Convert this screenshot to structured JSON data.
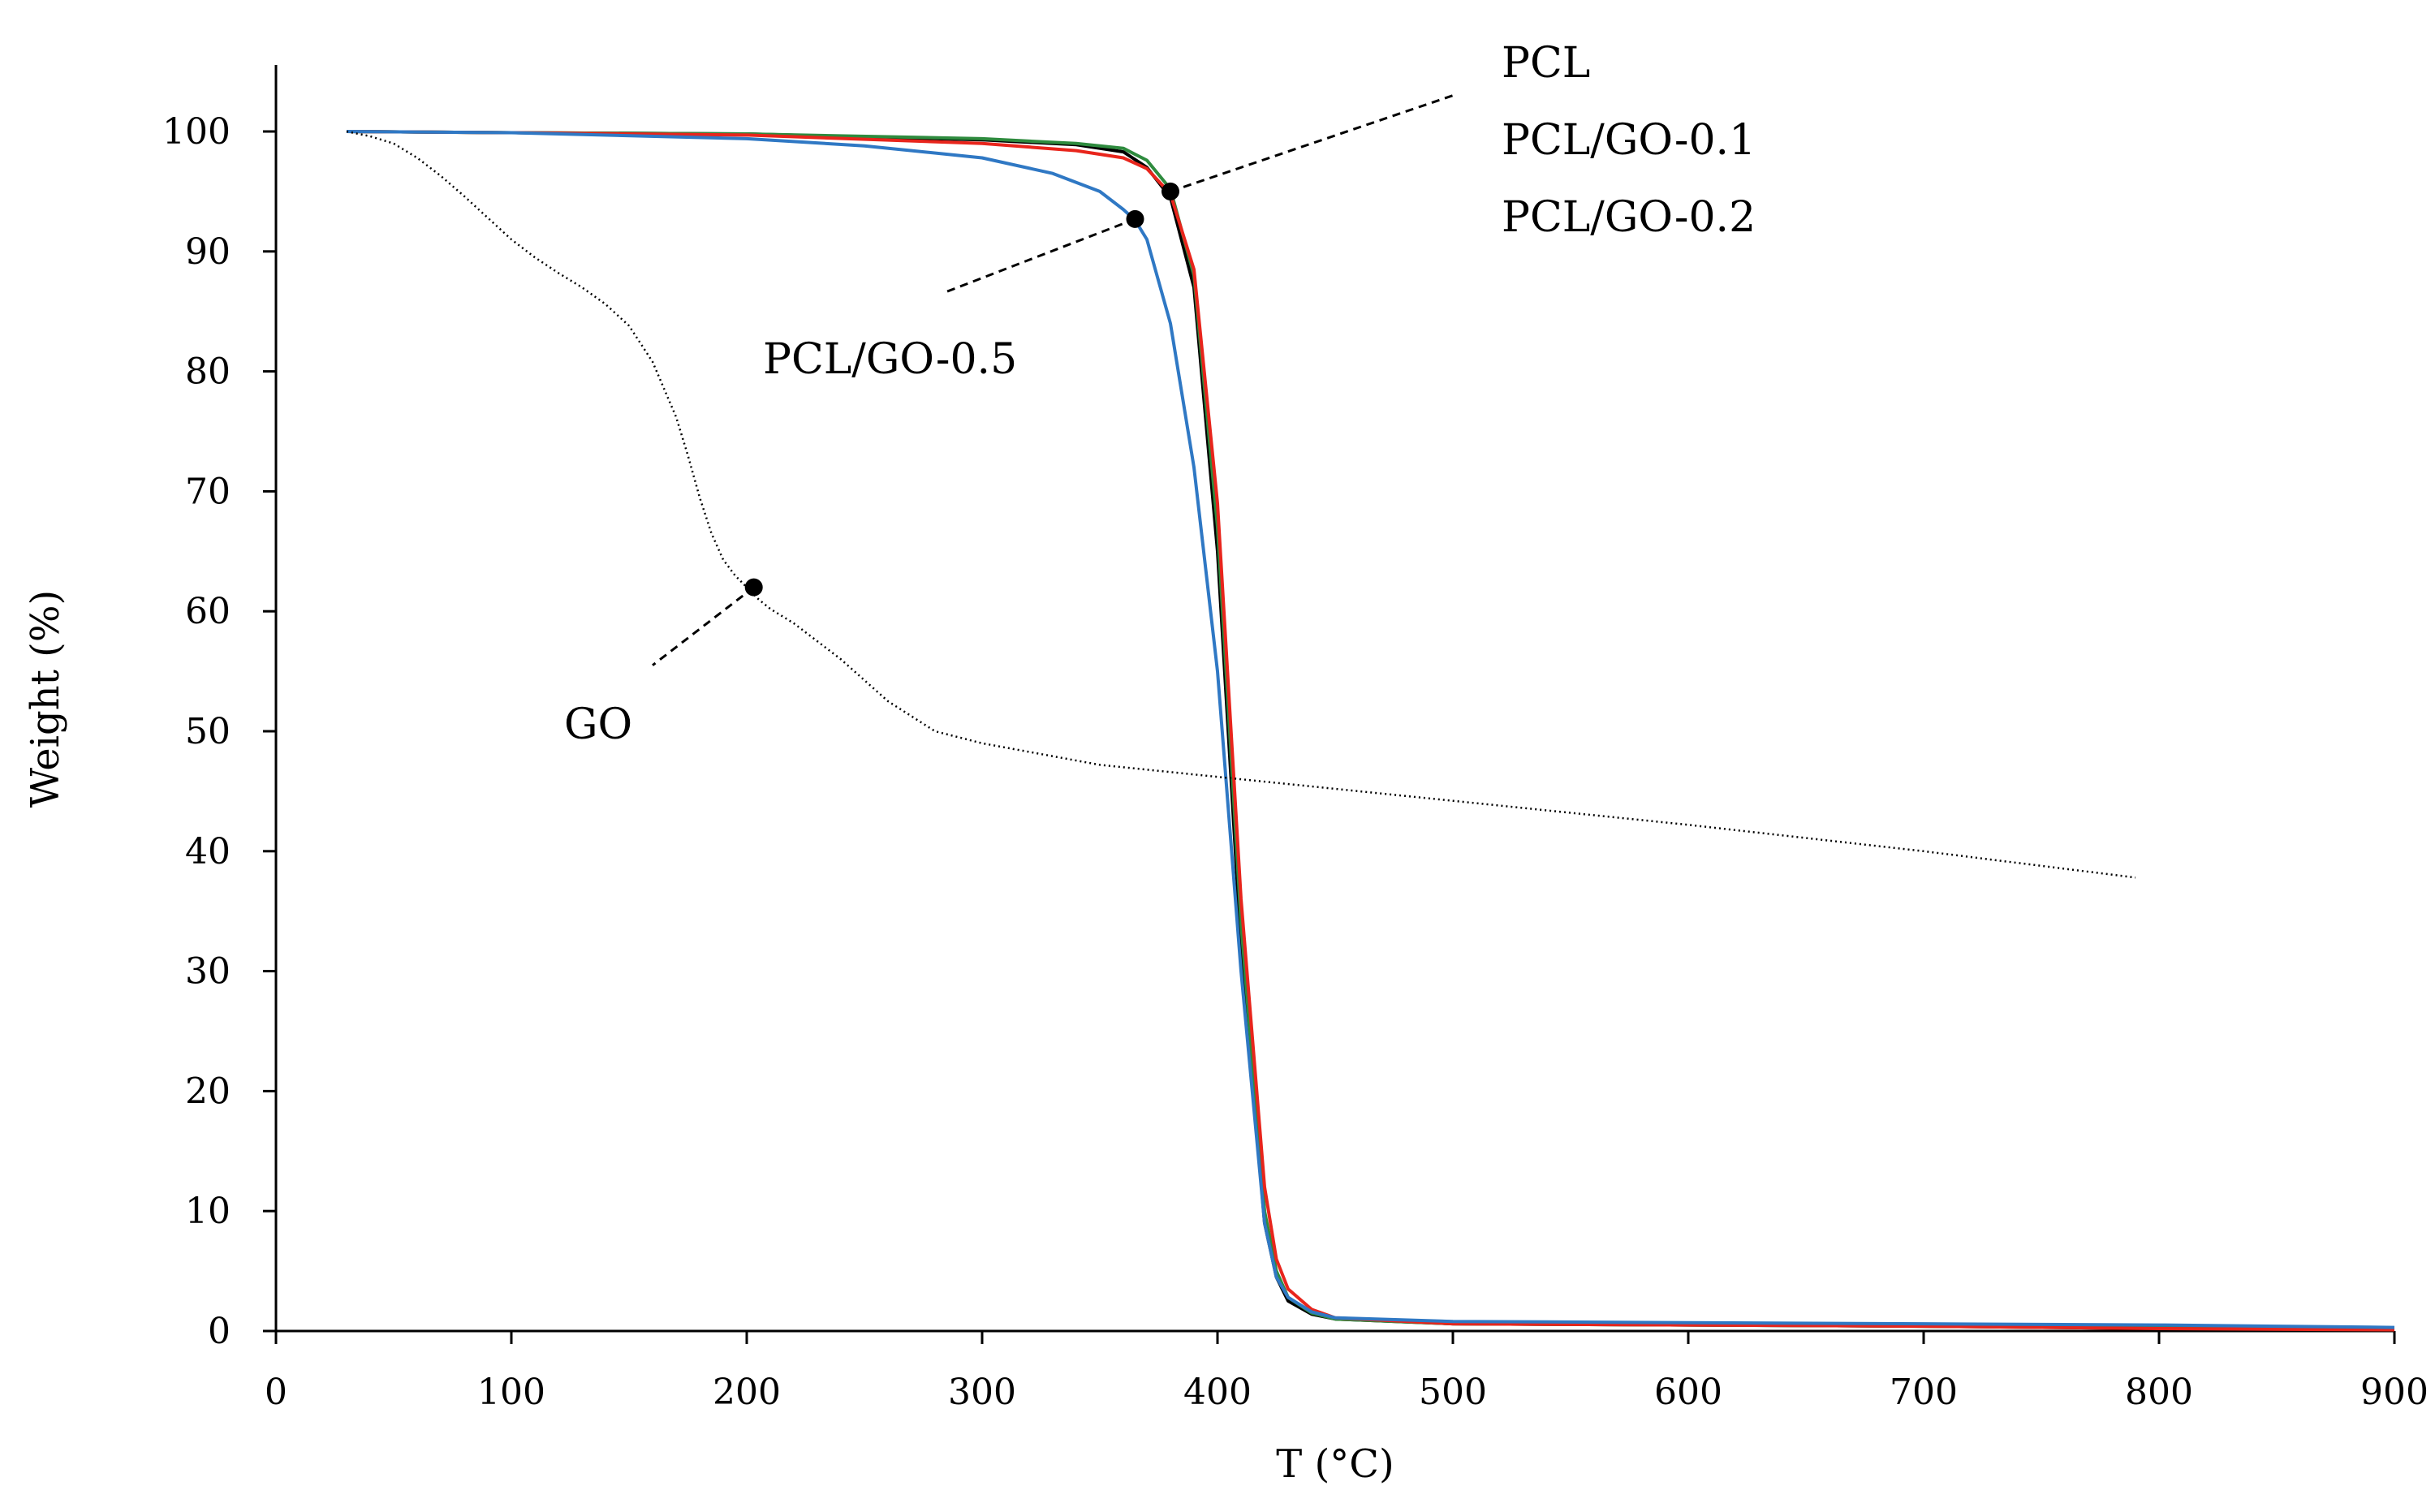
{
  "chart_data": {
    "type": "line",
    "title": "",
    "xlabel": "T (°C)",
    "ylabel": "Weight (%)",
    "xlim": [
      0,
      900
    ],
    "ylim": [
      0,
      100
    ],
    "xticks": [
      0,
      100,
      200,
      300,
      400,
      500,
      600,
      700,
      800,
      900
    ],
    "yticks": [
      0,
      10,
      20,
      30,
      40,
      50,
      60,
      70,
      80,
      90,
      100
    ],
    "grid": false,
    "legend": "none (inline annotations)",
    "series": [
      {
        "name": "PCL",
        "color": "#000000",
        "style": "solid",
        "x": [
          30,
          100,
          200,
          300,
          340,
          360,
          370,
          380,
          390,
          400,
          410,
          420,
          425,
          430,
          440,
          450,
          500,
          600,
          700,
          800,
          900
        ],
        "y": [
          100,
          99.9,
          99.8,
          99.3,
          98.9,
          98.3,
          97,
          94.5,
          87,
          65,
          32,
          9,
          4.5,
          2.5,
          1.4,
          1,
          0.6,
          0.5,
          0.4,
          0.2,
          0.1
        ]
      },
      {
        "name": "PCL/GO-0.1",
        "color": "#2e8b3e",
        "style": "solid",
        "x": [
          30,
          100,
          200,
          300,
          340,
          360,
          370,
          380,
          390,
          400,
          410,
          420,
          425,
          430,
          440,
          450,
          500,
          600,
          700,
          800,
          900
        ],
        "y": [
          100,
          99.9,
          99.8,
          99.4,
          99,
          98.6,
          97.6,
          95.2,
          88,
          67,
          34,
          10,
          5,
          2.8,
          1.5,
          1,
          0.6,
          0.5,
          0.4,
          0.3,
          0.2
        ]
      },
      {
        "name": "PCL/GO-0.2",
        "color": "#e8251c",
        "style": "solid",
        "x": [
          30,
          100,
          200,
          300,
          340,
          360,
          370,
          380,
          390,
          400,
          410,
          420,
          425,
          430,
          440,
          450,
          500,
          600,
          700,
          800,
          900
        ],
        "y": [
          100,
          99.9,
          99.7,
          99,
          98.4,
          97.8,
          96.9,
          94.8,
          88.5,
          69,
          36,
          12,
          6,
          3.5,
          1.8,
          1.1,
          0.6,
          0.5,
          0.4,
          0.2,
          0.1
        ]
      },
      {
        "name": "PCL/GO-0.5",
        "color": "#2f78c4",
        "style": "solid",
        "x": [
          30,
          100,
          200,
          250,
          300,
          330,
          350,
          360,
          365,
          370,
          380,
          390,
          400,
          410,
          420,
          425,
          430,
          440,
          450,
          500,
          600,
          700,
          800,
          900
        ],
        "y": [
          100,
          99.9,
          99.4,
          98.8,
          97.8,
          96.5,
          95,
          93.5,
          92.6,
          91,
          84,
          72,
          55,
          30,
          9,
          4.5,
          2.8,
          1.6,
          1.1,
          0.8,
          0.7,
          0.6,
          0.5,
          0.3
        ]
      },
      {
        "name": "GO",
        "color": "#000000",
        "style": "dotted",
        "x": [
          30,
          40,
          50,
          60,
          70,
          80,
          90,
          100,
          110,
          120,
          130,
          140,
          150,
          160,
          170,
          175,
          180,
          185,
          190,
          195,
          200,
          205,
          210,
          220,
          240,
          260,
          280,
          300,
          350,
          400,
          500,
          600,
          700,
          790
        ],
        "y": [
          100,
          99.6,
          99,
          97.8,
          96.3,
          94.6,
          92.8,
          91,
          89.5,
          88.2,
          87,
          85.6,
          83.8,
          80.8,
          76.2,
          73,
          69.5,
          66.5,
          64.3,
          63,
          62,
          61,
          60.2,
          59,
          56,
          52.5,
          50,
          49,
          47.2,
          46.2,
          44.2,
          42.2,
          40,
          37.8
        ]
      }
    ],
    "annotations": [
      {
        "labels": [
          "PCL",
          "PCL/GO-0.1",
          "PCL/GO-0.2"
        ],
        "point": [
          380,
          95
        ],
        "line_to": [
          500,
          103
        ]
      },
      {
        "labels": [
          "PCL/GO-0.5"
        ],
        "point": [
          365,
          92.7
        ],
        "line_to": [
          283,
          86.5
        ]
      },
      {
        "labels": [
          "GO"
        ],
        "point": [
          203,
          62
        ],
        "line_to": [
          160,
          55.5
        ]
      }
    ]
  }
}
